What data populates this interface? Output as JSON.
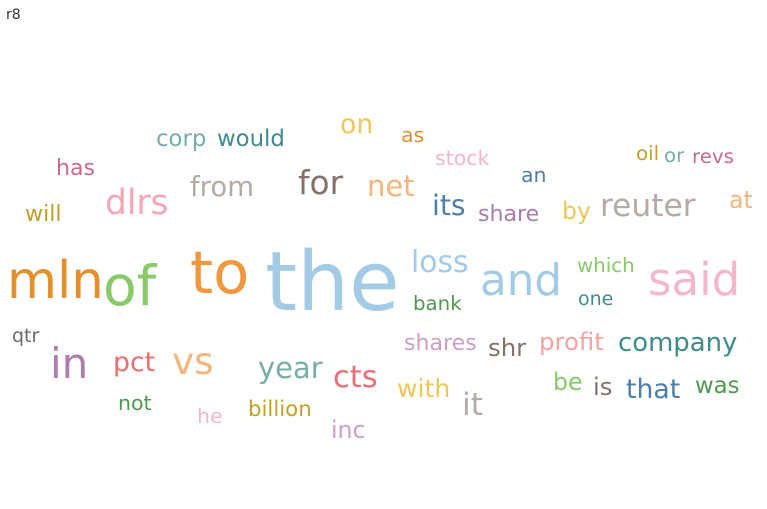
{
  "title": "r8",
  "chart_data": {
    "type": "wordcloud",
    "palette": {
      "pink": "#f4b6cb",
      "blue": "#a3cbe6",
      "orange": "#f0973f",
      "green": "#88c96a",
      "purple": "#ae7fae",
      "gray": "#b6aaa6",
      "red": "#ed6e72",
      "teal": "#76afa7",
      "peach": "#f7b57e",
      "brown": "#84726a",
      "lightpink": "#f5a6b8",
      "yellow": "#ecc85a",
      "navy": "#4d7fa8",
      "darkteal": "#3f8c8c",
      "olive": "#b49c3a",
      "darkgreen": "#4f9a4e",
      "mauve": "#c86c8c",
      "darkgray": "#6a6a6a",
      "lightpurple": "#cd9fc7",
      "salmon": "#f4a39f",
      "darkorange": "#e5902d",
      "greengold": "#c4a02a",
      "lavender": "#a87cb0"
    },
    "words": [
      {
        "text": "the",
        "weight": 100,
        "color": "blue"
      },
      {
        "text": "to",
        "weight": 70,
        "color": "orange"
      },
      {
        "text": "of",
        "weight": 65,
        "color": "green"
      },
      {
        "text": "mln",
        "weight": 60,
        "color": "darkorange"
      },
      {
        "text": "said",
        "weight": 52,
        "color": "pink"
      },
      {
        "text": "and",
        "weight": 50,
        "color": "blue"
      },
      {
        "text": "in",
        "weight": 48,
        "color": "purple"
      },
      {
        "text": "vs",
        "weight": 42,
        "color": "peach"
      },
      {
        "text": "dlrs",
        "weight": 38,
        "color": "lightpink"
      },
      {
        "text": "for",
        "weight": 36,
        "color": "brown"
      },
      {
        "text": "reuter",
        "weight": 34,
        "color": "gray"
      },
      {
        "text": "it",
        "weight": 34,
        "color": "gray"
      },
      {
        "text": "cts",
        "weight": 33,
        "color": "red"
      },
      {
        "text": "loss",
        "weight": 32,
        "color": "blue"
      },
      {
        "text": "net",
        "weight": 31,
        "color": "peach"
      },
      {
        "text": "year",
        "weight": 31,
        "color": "teal"
      },
      {
        "text": "its",
        "weight": 30,
        "color": "navy"
      },
      {
        "text": "from",
        "weight": 29,
        "color": "gray"
      },
      {
        "text": "pct",
        "weight": 28,
        "color": "red"
      },
      {
        "text": "that",
        "weight": 28,
        "color": "navy"
      },
      {
        "text": "on",
        "weight": 28,
        "color": "yellow"
      },
      {
        "text": "company",
        "weight": 27,
        "color": "darkteal"
      },
      {
        "text": "with",
        "weight": 26,
        "color": "yellow"
      },
      {
        "text": "shr",
        "weight": 25,
        "color": "brown"
      },
      {
        "text": "profit",
        "weight": 25,
        "color": "salmon"
      },
      {
        "text": "is",
        "weight": 25,
        "color": "brown"
      },
      {
        "text": "be",
        "weight": 24,
        "color": "green"
      },
      {
        "text": "inc",
        "weight": 24,
        "color": "lightpurple"
      },
      {
        "text": "by",
        "weight": 24,
        "color": "yellow"
      },
      {
        "text": "at",
        "weight": 24,
        "color": "peach"
      },
      {
        "text": "would",
        "weight": 23,
        "color": "darkteal"
      },
      {
        "text": "corp",
        "weight": 23,
        "color": "teal"
      },
      {
        "text": "was",
        "weight": 23,
        "color": "darkgreen"
      },
      {
        "text": "shares",
        "weight": 22,
        "color": "lightpurple"
      },
      {
        "text": "share",
        "weight": 22,
        "color": "lavender"
      },
      {
        "text": "has",
        "weight": 22,
        "color": "mauve"
      },
      {
        "text": "will",
        "weight": 22,
        "color": "greengold"
      },
      {
        "text": "billion",
        "weight": 21,
        "color": "greengold"
      },
      {
        "text": "he",
        "weight": 20,
        "color": "pink"
      },
      {
        "text": "not",
        "weight": 20,
        "color": "darkgreen"
      },
      {
        "text": "stock",
        "weight": 20,
        "color": "pink"
      },
      {
        "text": "as",
        "weight": 20,
        "color": "darkorange"
      },
      {
        "text": "an",
        "weight": 20,
        "color": "navy"
      },
      {
        "text": "which",
        "weight": 19,
        "color": "green"
      },
      {
        "text": "oil",
        "weight": 19,
        "color": "greengold"
      },
      {
        "text": "or",
        "weight": 19,
        "color": "teal"
      },
      {
        "text": "revs",
        "weight": 19,
        "color": "mauve"
      },
      {
        "text": "bank",
        "weight": 19,
        "color": "darkgreen"
      },
      {
        "text": "one",
        "weight": 18,
        "color": "darkteal"
      },
      {
        "text": "qtr",
        "weight": 18,
        "color": "darkgray"
      }
    ]
  }
}
